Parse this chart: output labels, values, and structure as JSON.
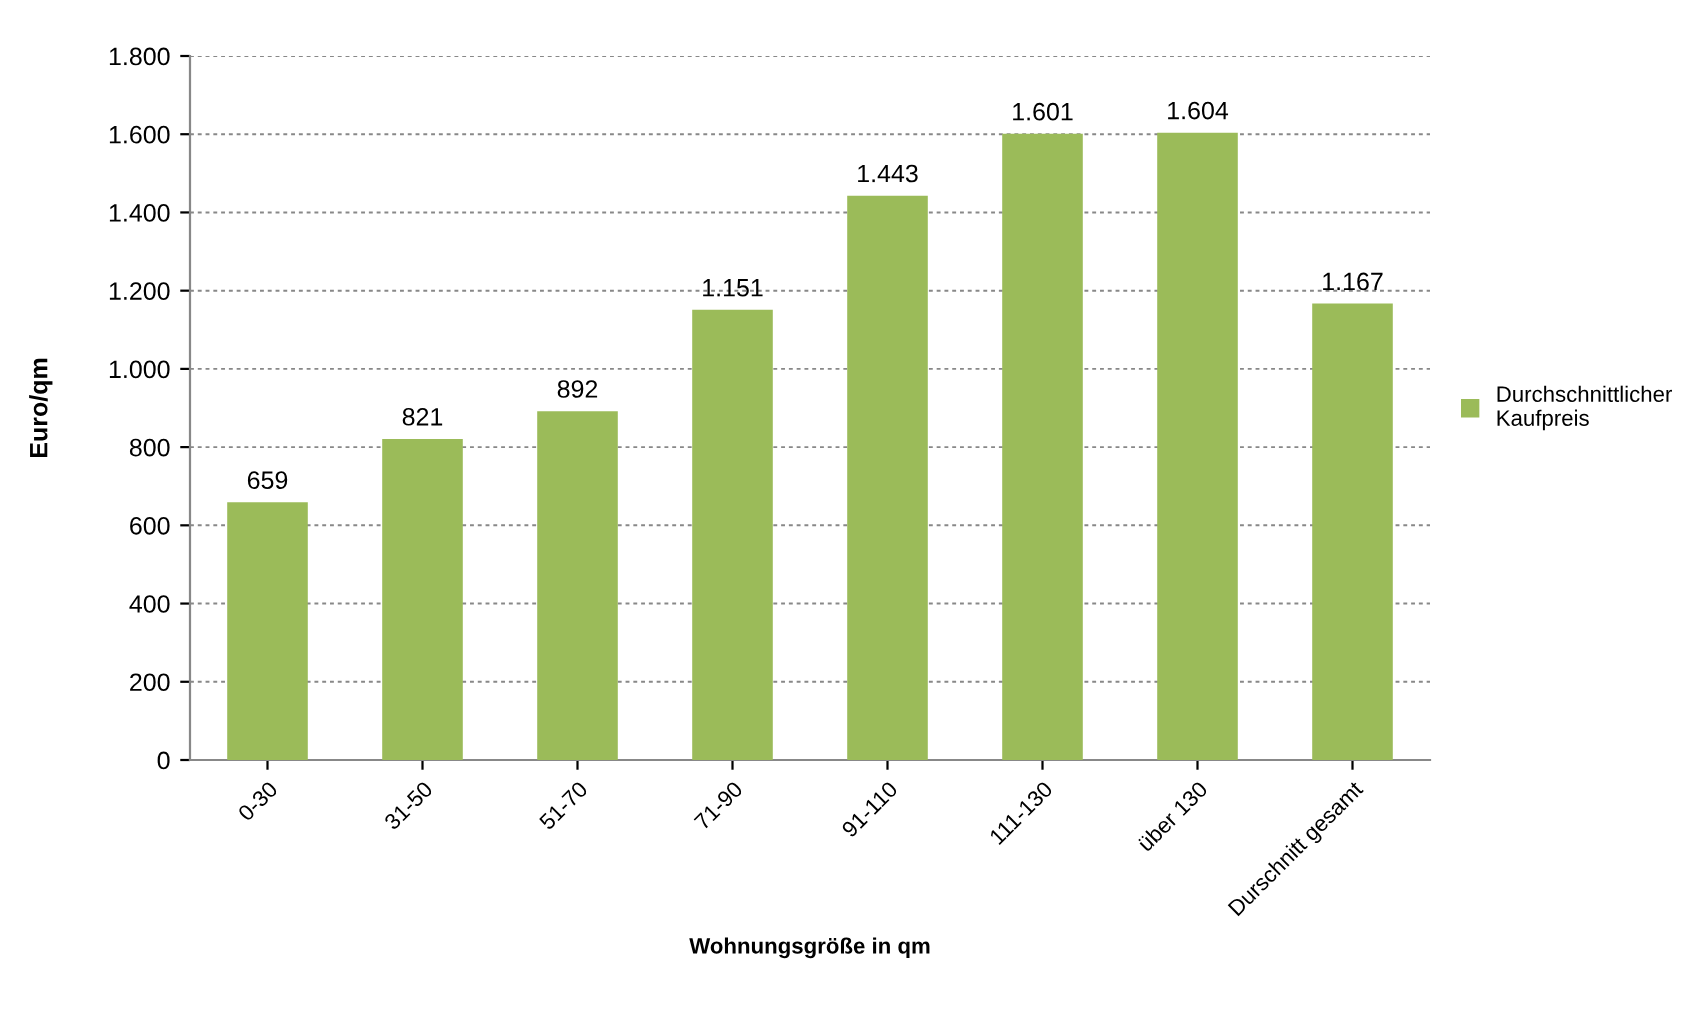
{
  "chart_data": {
    "type": "bar",
    "xlabel": "Wohnungsgröße in qm",
    "ylabel": "Euro/qm",
    "categories": [
      "0-30",
      "31-50",
      "51-70",
      "71-90",
      "91-110",
      "111-130",
      "über 130",
      "Durschnitt gesamt"
    ],
    "series": [
      {
        "name": "Durchschnittlicher\nKaufpreis",
        "color": "#9bbb59",
        "values": [
          659,
          821,
          892,
          1151,
          1443,
          1601,
          1604,
          1167
        ],
        "value_labels": [
          "659",
          "821",
          "892",
          "1.151",
          "1.443",
          "1.601",
          "1.604",
          "1.167"
        ]
      }
    ],
    "ylim": [
      0,
      1800
    ],
    "yticks": [
      0,
      {
        "value": 200,
        "label": "200"
      },
      {
        "value": 400,
        "label": "400"
      },
      {
        "value": 600,
        "label": "600"
      },
      {
        "value": 800,
        "label": "800"
      },
      {
        "value": 1000,
        "label": "1.000"
      },
      {
        "value": 1200,
        "label": "1.200"
      },
      {
        "value": 1400,
        "label": "1.400"
      },
      {
        "value": 1600,
        "label": "1.600"
      },
      {
        "value": 1800,
        "label": "1.800"
      }
    ],
    "grid": "y",
    "legend": "right"
  }
}
